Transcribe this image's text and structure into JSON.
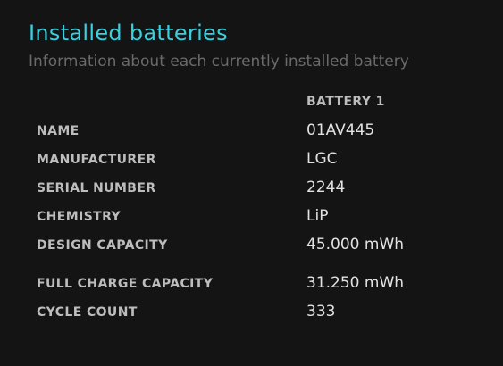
{
  "header": {
    "title": "Installed batteries",
    "subtitle": "Information about each currently installed battery"
  },
  "table": {
    "column_header": "BATTERY 1",
    "rows": [
      {
        "label": "NAME",
        "value": "01AV445"
      },
      {
        "label": "MANUFACTURER",
        "value": "LGC"
      },
      {
        "label": "SERIAL NUMBER",
        "value": "2244"
      },
      {
        "label": "CHEMISTRY",
        "value": "LiP"
      },
      {
        "label": "DESIGN CAPACITY",
        "value": "45.000 mWh"
      },
      {
        "label": "FULL CHARGE CAPACITY",
        "value": "31.250 mWh"
      },
      {
        "label": "CYCLE COUNT",
        "value": "333"
      }
    ]
  },
  "colors": {
    "background": "#141414",
    "title": "#39d0e0",
    "subtitle": "#6a6a6a",
    "label": "#bdbdbd",
    "value": "#e2e2e2"
  }
}
